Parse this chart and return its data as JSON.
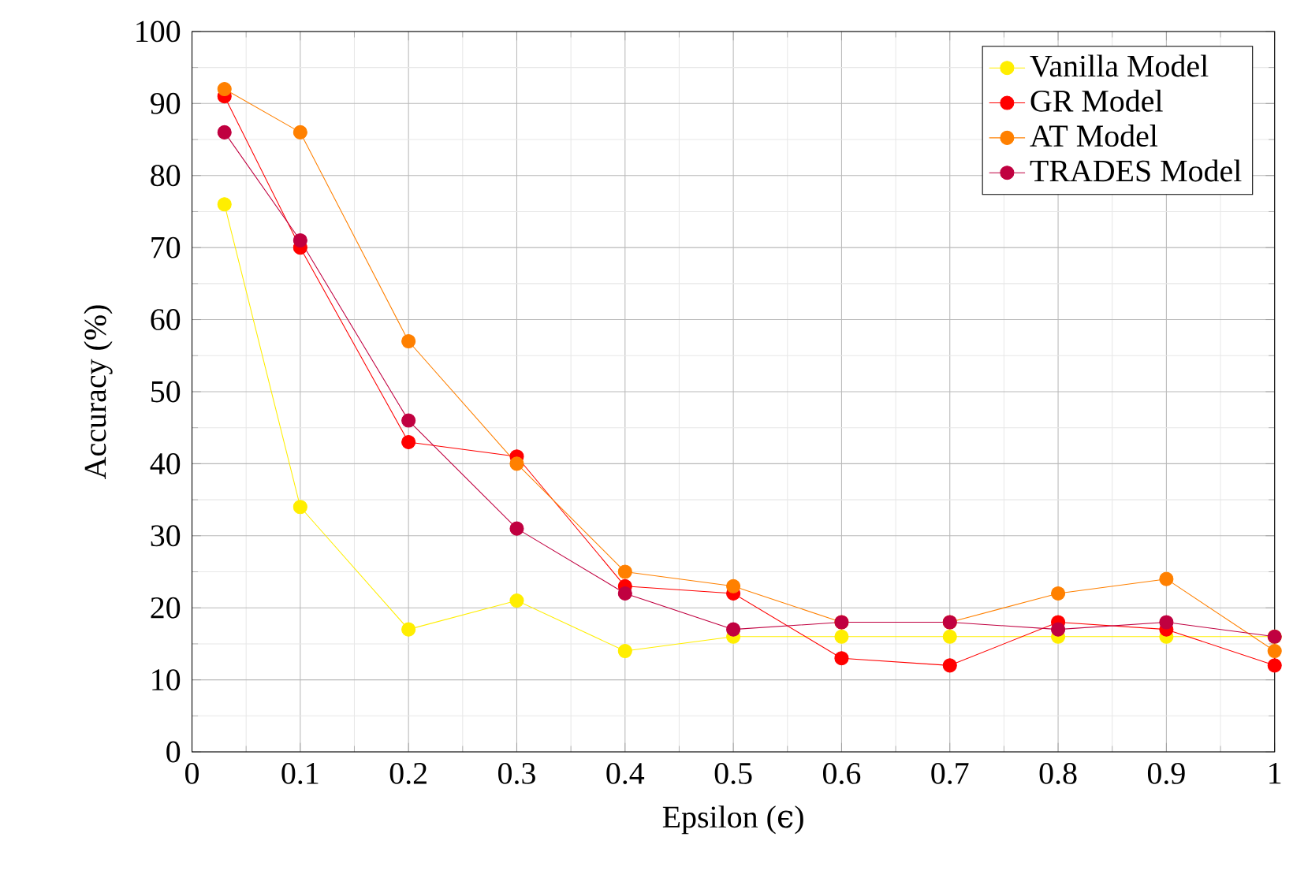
{
  "chart_data": {
    "type": "line",
    "xlabel": "Epsilon (ϵ)",
    "ylabel": "Accuracy (%)",
    "x": [
      0.03,
      0.1,
      0.2,
      0.3,
      0.4,
      0.5,
      0.6,
      0.7,
      0.8,
      0.9,
      1
    ],
    "series": [
      {
        "name": "Vanilla Model",
        "color": "#ffee00",
        "values": [
          76,
          34,
          17,
          21,
          14,
          16,
          16,
          16,
          16,
          16,
          16
        ]
      },
      {
        "name": "GR Model",
        "color": "#ff0000",
        "values": [
          91,
          70,
          43,
          41,
          23,
          22,
          13,
          12,
          18,
          17,
          12
        ]
      },
      {
        "name": "AT Model",
        "color": "#ff8000",
        "values": [
          92,
          86,
          57,
          40,
          25,
          23,
          18,
          18,
          22,
          24,
          14
        ]
      },
      {
        "name": "TRADES Model",
        "color": "#c00040",
        "values": [
          86,
          71,
          46,
          31,
          22,
          17,
          18,
          18,
          17,
          18,
          16
        ]
      }
    ],
    "xlim": [
      0,
      1
    ],
    "ylim": [
      0,
      100
    ],
    "xticks": [
      0,
      0.1,
      0.2,
      0.3,
      0.4,
      0.5,
      0.6,
      0.7,
      0.8,
      0.9,
      1
    ],
    "yticks": [
      0,
      10,
      20,
      30,
      40,
      50,
      60,
      70,
      80,
      90,
      100
    ],
    "grid": true,
    "legend": "top right",
    "marker": "circle",
    "line_style": "solid"
  }
}
